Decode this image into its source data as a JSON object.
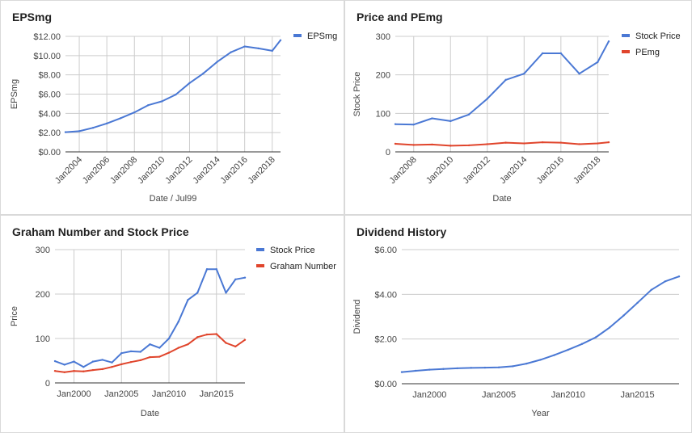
{
  "panels": [
    {
      "title": "EPSmg",
      "chart_data": {
        "type": "line",
        "xlabel": "Date / Jul99",
        "ylabel": "EPSmg",
        "x_min": 2003,
        "x_max": 2018.6,
        "ylim": [
          0,
          12
        ],
        "y_ticks": [
          0,
          2,
          4,
          6,
          8,
          10,
          12
        ],
        "y_tick_labels": [
          "$0.00",
          "$2.00",
          "$4.00",
          "$6.00",
          "$8.00",
          "$10.00",
          "$12.00"
        ],
        "x_ticks": [
          2004,
          2006,
          2008,
          2010,
          2012,
          2014,
          2016,
          2018
        ],
        "x_tick_labels": [
          "Jan2004",
          "Jan2006",
          "Jan2008",
          "Jan2010",
          "Jan2012",
          "Jan2014",
          "Jan2016",
          "Jan2018"
        ],
        "x_label_rotate": true,
        "x_gridlines": true,
        "legend": "right",
        "series": [
          {
            "name": "EPSmg",
            "color": "#4a78d4",
            "x": [
              2003,
              2004,
              2005,
              2006,
              2007,
              2008,
              2009,
              2010,
              2011,
              2012,
              2013,
              2014,
              2015,
              2016,
              2017,
              2018,
              2018.6
            ],
            "y": [
              2.05,
              2.15,
              2.5,
              2.95,
              3.5,
              4.1,
              4.85,
              5.25,
              5.95,
              7.15,
              8.15,
              9.35,
              10.35,
              10.95,
              10.75,
              10.5,
              11.6
            ]
          }
        ]
      }
    },
    {
      "title": "Price and PEmg",
      "chart_data": {
        "type": "line",
        "xlabel": "Date",
        "ylabel": "Stock Price",
        "x_min": 2007,
        "x_max": 2018.6,
        "ylim": [
          0,
          300
        ],
        "y_ticks": [
          0,
          100,
          200,
          300
        ],
        "y_tick_labels": [
          "0",
          "100",
          "200",
          "300"
        ],
        "x_ticks": [
          2008,
          2010,
          2012,
          2014,
          2016,
          2018
        ],
        "x_tick_labels": [
          "Jan2008",
          "Jan2010",
          "Jan2012",
          "Jan2014",
          "Jan2016",
          "Jan2018"
        ],
        "x_label_rotate": true,
        "x_gridlines": true,
        "legend": "right",
        "series": [
          {
            "name": "Stock Price",
            "color": "#4a78d4",
            "x": [
              2007,
              2008,
              2009,
              2010,
              2011,
              2012,
              2013,
              2014,
              2015,
              2016,
              2017,
              2018,
              2018.6
            ],
            "y": [
              72,
              71,
              87,
              80,
              97,
              138,
              187,
              203,
              256,
              256,
              203,
              233,
              287
            ]
          },
          {
            "name": "PEmg",
            "color": "#e0452c",
            "x": [
              2007,
              2008,
              2009,
              2010,
              2011,
              2012,
              2013,
              2014,
              2015,
              2016,
              2017,
              2018,
              2018.6
            ],
            "y": [
              21,
              18,
              19,
              16,
              17,
              20,
              24,
              22,
              25,
              24,
              20,
              22,
              25
            ]
          }
        ]
      }
    },
    {
      "title": "Graham Number and Stock Price",
      "chart_data": {
        "type": "line",
        "xlabel": "Date",
        "ylabel": "Price",
        "x_min": 1998,
        "x_max": 2018,
        "ylim": [
          0,
          300
        ],
        "y_ticks": [
          0,
          100,
          200,
          300
        ],
        "y_tick_labels": [
          "0",
          "100",
          "200",
          "300"
        ],
        "x_ticks": [
          2000,
          2005,
          2010,
          2015
        ],
        "x_tick_labels": [
          "Jan2000",
          "Jan2005",
          "Jan2010",
          "Jan2015"
        ],
        "x_label_rotate": false,
        "x_gridlines": true,
        "legend": "right",
        "series": [
          {
            "name": "Stock Price",
            "color": "#4a78d4",
            "x": [
              1998,
              1999,
              2000,
              2001,
              2002,
              2003,
              2004,
              2005,
              2006,
              2007,
              2008,
              2009,
              2010,
              2011,
              2012,
              2013,
              2014,
              2015,
              2016,
              2017,
              2018
            ],
            "y": [
              49,
              41,
              48,
              36,
              48,
              52,
              46,
              67,
              71,
              70,
              87,
              79,
              100,
              138,
              187,
              203,
              256,
              256,
              203,
              233,
              237
            ]
          },
          {
            "name": "Graham Number",
            "color": "#e0452c",
            "x": [
              1998,
              1999,
              2000,
              2001,
              2002,
              2003,
              2004,
              2005,
              2006,
              2007,
              2008,
              2009,
              2010,
              2011,
              2012,
              2013,
              2014,
              2015,
              2016,
              2017,
              2018
            ],
            "y": [
              27,
              24,
              27,
              26,
              29,
              31,
              36,
              42,
              47,
              51,
              58,
              59,
              68,
              79,
              87,
              103,
              109,
              110,
              90,
              82,
              97
            ]
          }
        ]
      }
    },
    {
      "title": "Dividend History",
      "chart_data": {
        "type": "line",
        "xlabel": "Year",
        "ylabel": "Dividend",
        "x_min": 1998,
        "x_max": 2018,
        "ylim": [
          0,
          6
        ],
        "y_ticks": [
          0,
          2,
          4,
          6
        ],
        "y_tick_labels": [
          "$0.00",
          "$2.00",
          "$4.00",
          "$6.00"
        ],
        "x_ticks": [
          2000,
          2005,
          2010,
          2015
        ],
        "x_tick_labels": [
          "Jan2000",
          "Jan2005",
          "Jan2010",
          "Jan2015"
        ],
        "x_label_rotate": false,
        "x_gridlines": false,
        "legend": "none",
        "series": [
          {
            "name": "",
            "color": "#4a78d4",
            "x": [
              1998,
              1999,
              2000,
              2001,
              2002,
              2003,
              2004,
              2005,
              2006,
              2007,
              2008,
              2009,
              2010,
              2011,
              2012,
              2013,
              2014,
              2015,
              2016,
              2017,
              2018
            ],
            "y": [
              0.52,
              0.58,
              0.63,
              0.66,
              0.69,
              0.71,
              0.72,
              0.73,
              0.78,
              0.9,
              1.07,
              1.28,
              1.52,
              1.78,
              2.08,
              2.52,
              3.05,
              3.62,
              4.2,
              4.58,
              4.8
            ]
          }
        ]
      }
    }
  ],
  "style": {
    "grid_color": "#cccccc",
    "axis_color": "#333333",
    "tick_text_color": "#444444",
    "legend_text_color": "#222222"
  }
}
